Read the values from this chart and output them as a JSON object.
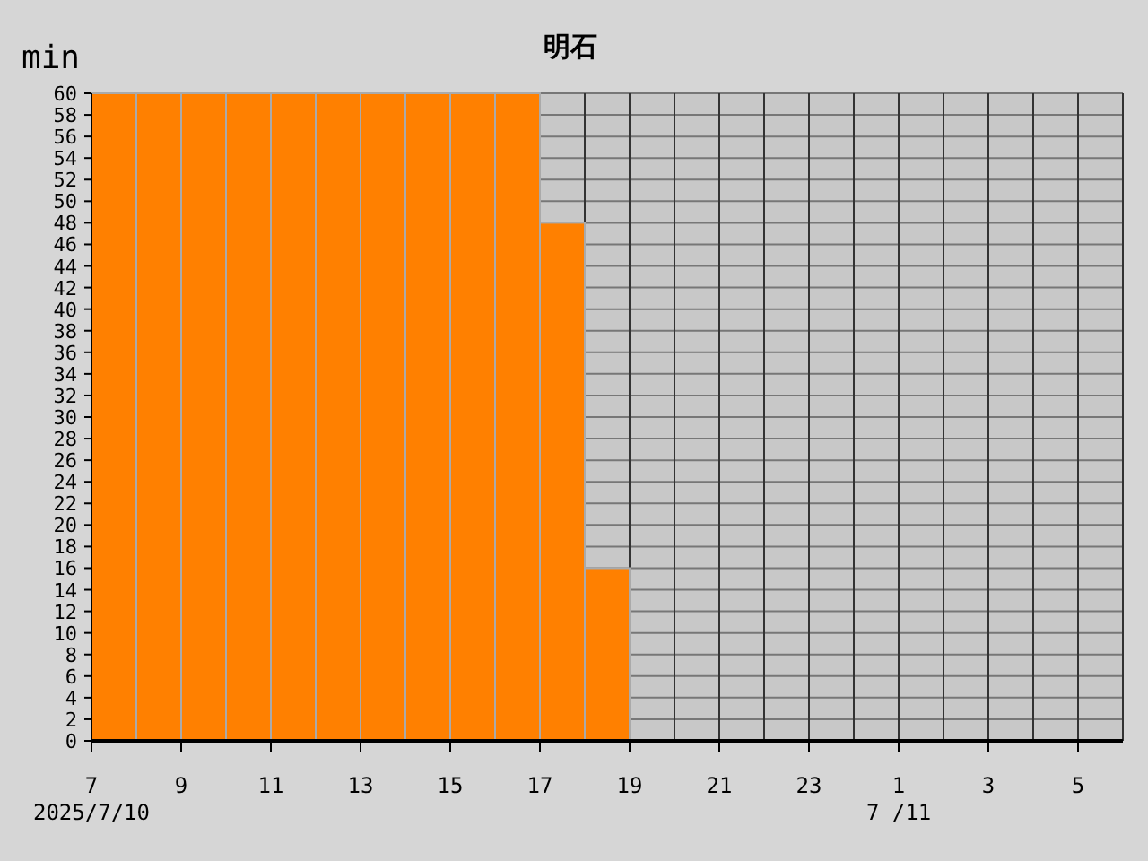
{
  "chart_data": {
    "type": "bar",
    "title": "明石",
    "ylabel": "min",
    "x": [
      "2025-07-10T07:30",
      "2025-07-10T08:30",
      "2025-07-10T09:30",
      "2025-07-10T10:30",
      "2025-07-10T11:30",
      "2025-07-10T12:30",
      "2025-07-10T13:30",
      "2025-07-10T14:30",
      "2025-07-10T15:30",
      "2025-07-10T16:30",
      "2025-07-10T17:30",
      "2025-07-10T18:30"
    ],
    "values": [
      60,
      60,
      60,
      60,
      60,
      60,
      60,
      60,
      60,
      60,
      48,
      16
    ],
    "color": "#ff8000",
    "xlim": [
      "2025-07-10T07:00",
      "2025-07-11T06:00"
    ],
    "xticks": [
      {
        "value": "2025-07-10T07:00",
        "label": "7"
      },
      {
        "value": "2025-07-10T09:00",
        "label": "9"
      },
      {
        "value": "2025-07-10T11:00",
        "label": "11"
      },
      {
        "value": "2025-07-10T13:00",
        "label": "13"
      },
      {
        "value": "2025-07-10T15:00",
        "label": "15"
      },
      {
        "value": "2025-07-10T17:00",
        "label": "17"
      },
      {
        "value": "2025-07-10T19:00",
        "label": "19"
      },
      {
        "value": "2025-07-10T21:00",
        "label": "21"
      },
      {
        "value": "2025-07-10T23:00",
        "label": "23"
      },
      {
        "value": "2025-07-11T01:00",
        "label": "1"
      },
      {
        "value": "2025-07-11T03:00",
        "label": "3"
      },
      {
        "value": "2025-07-11T05:00",
        "label": "5"
      }
    ],
    "ylim": [
      0,
      60
    ],
    "yticks": [
      0,
      2,
      4,
      6,
      8,
      10,
      12,
      14,
      16,
      18,
      20,
      22,
      24,
      26,
      28,
      30,
      32,
      34,
      36,
      38,
      40,
      42,
      44,
      46,
      48,
      50,
      52,
      54,
      56,
      58,
      60
    ],
    "grid": true,
    "annotations": [
      "2025/7/10",
      "7 /11"
    ]
  }
}
